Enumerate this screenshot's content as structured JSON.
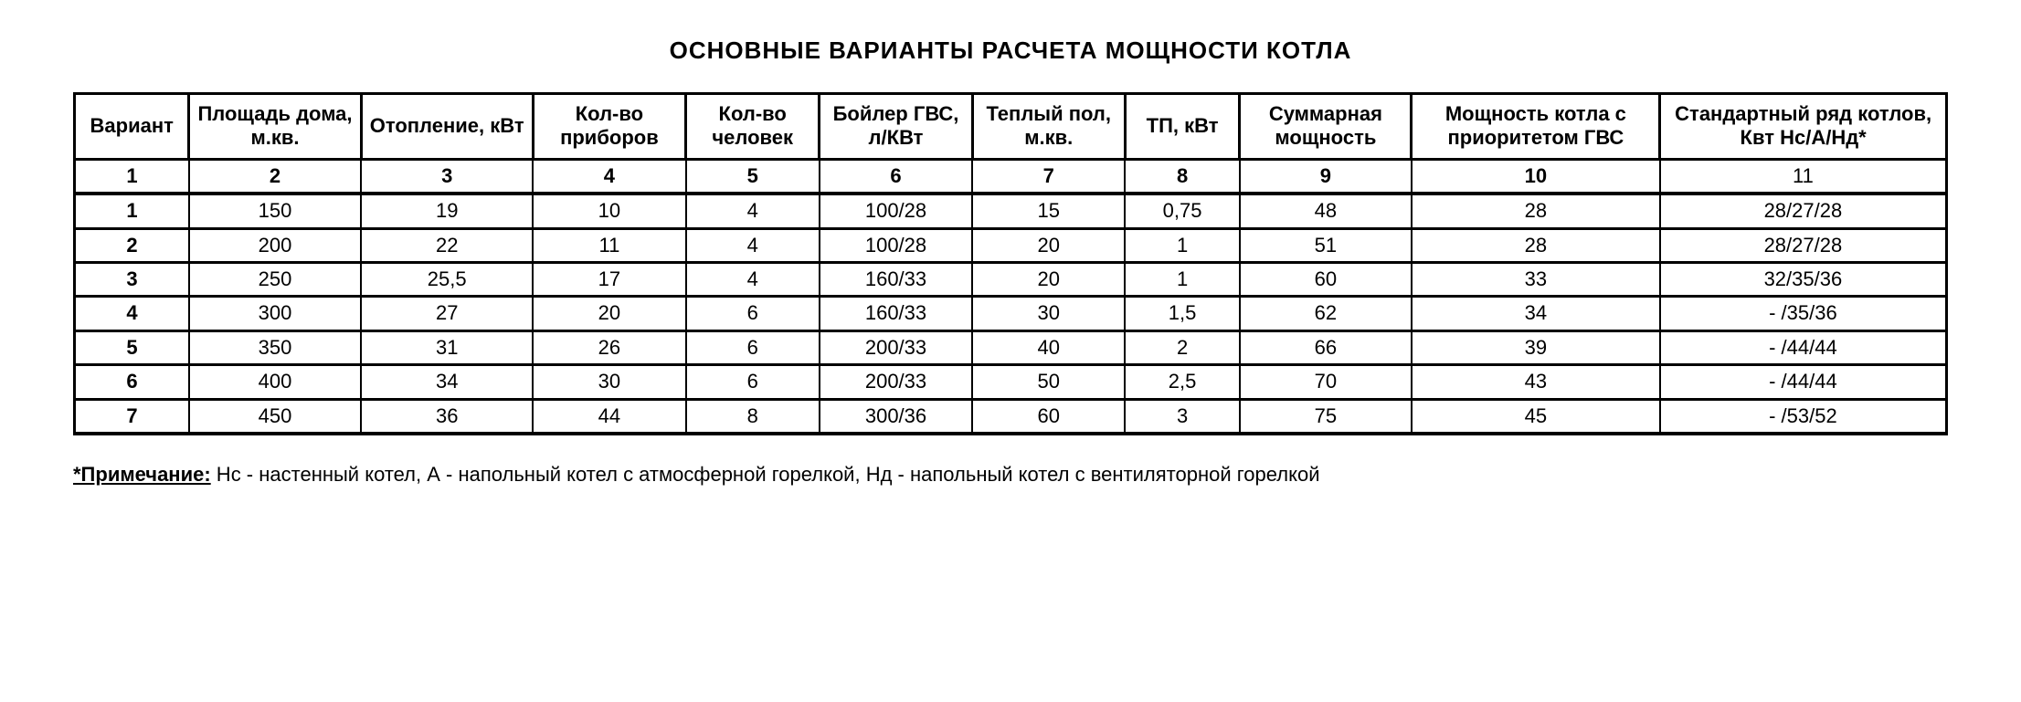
{
  "title": "ОСНОВНЫЕ ВАРИАНТЫ РАСЧЕТА МОЩНОСТИ КОТЛА",
  "table": {
    "type": "table",
    "background_color": "#ffffff",
    "border_color": "#000000",
    "text_color": "#000000",
    "header_fontsize": 22,
    "cell_fontsize": 22,
    "columns": [
      {
        "label": "Вариант",
        "width_pct": 6
      },
      {
        "label": "Площадь дома, м.кв.",
        "width_pct": 9
      },
      {
        "label": "Отопление, кВт",
        "width_pct": 9
      },
      {
        "label": "Кол-во приборов",
        "width_pct": 8
      },
      {
        "label": "Кол-во человек",
        "width_pct": 7
      },
      {
        "label": "Бойлер ГВС, л/КВт",
        "width_pct": 8
      },
      {
        "label": "Теплый пол, м.кв.",
        "width_pct": 8
      },
      {
        "label": "ТП, кВт",
        "width_pct": 6
      },
      {
        "label": "Суммарная мощность",
        "width_pct": 9
      },
      {
        "label": "Мощность котла с приоритетом ГВС",
        "width_pct": 13
      },
      {
        "label": "Стандартный ряд котлов, Квт Нс/А/Нд*",
        "width_pct": 15
      }
    ],
    "number_row": [
      "1",
      "2",
      "3",
      "4",
      "5",
      "6",
      "7",
      "8",
      "9",
      "10",
      "11"
    ],
    "rows": [
      [
        "1",
        "150",
        "19",
        "10",
        "4",
        "100/28",
        "15",
        "0,75",
        "48",
        "28",
        "28/27/28"
      ],
      [
        "2",
        "200",
        "22",
        "11",
        "4",
        "100/28",
        "20",
        "1",
        "51",
        "28",
        "28/27/28"
      ],
      [
        "3",
        "250",
        "25,5",
        "17",
        "4",
        "160/33",
        "20",
        "1",
        "60",
        "33",
        "32/35/36"
      ],
      [
        "4",
        "300",
        "27",
        "20",
        "6",
        "160/33",
        "30",
        "1,5",
        "62",
        "34",
        "- /35/36"
      ],
      [
        "5",
        "350",
        "31",
        "26",
        "6",
        "200/33",
        "40",
        "2",
        "66",
        "39",
        "- /44/44"
      ],
      [
        "6",
        "400",
        "34",
        "30",
        "6",
        "200/33",
        "50",
        "2,5",
        "70",
        "43",
        "- /44/44"
      ],
      [
        "7",
        "450",
        "36",
        "44",
        "8",
        "300/36",
        "60",
        "3",
        "75",
        "45",
        "- /53/52"
      ]
    ]
  },
  "footnote": {
    "label": "*Примечание:",
    "text": " Нс - настенный котел, А - напольный котел с атмосферной горелкой, Нд - напольный котел с вентиляторной горелкой"
  }
}
